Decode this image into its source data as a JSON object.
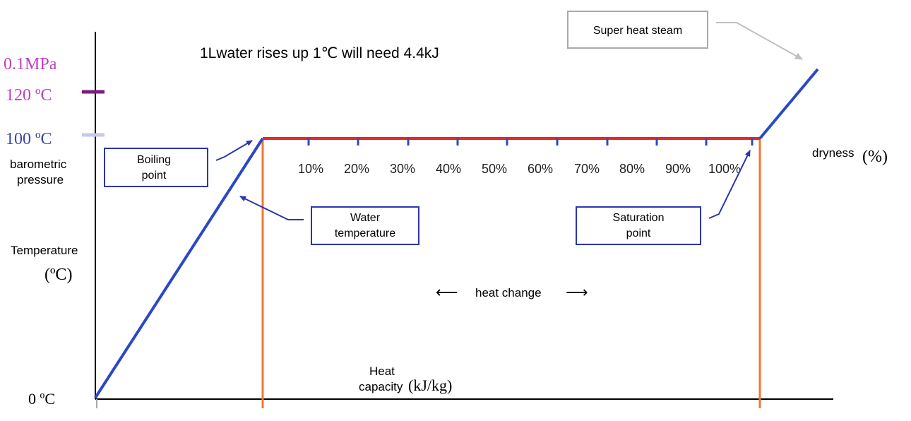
{
  "title": "1Lwater rises up 1℃ will need 4.4kJ",
  "y_axis": {
    "pressure_label": "0.1MPa",
    "tick_120": "120 ºC",
    "tick_100": "100 ºC",
    "tick_0": "0 ºC",
    "barometric_line1": "barometric",
    "barometric_line2": "pressure",
    "temperature_label": "Temperature",
    "temperature_unit": "(ºC)"
  },
  "x_axis": {
    "heat_label": "Heat",
    "capacity_label": "capacity",
    "unit": "(kJ/kg)"
  },
  "dryness": {
    "label": "dryness",
    "unit": "(%)",
    "ticks": [
      "10%",
      "20%",
      "30%",
      "40%",
      "50%",
      "60%",
      "70%",
      "80%",
      "90%",
      "100%"
    ]
  },
  "callouts": {
    "boiling_line1": "Boiling",
    "boiling_line2": "point",
    "water_line1": "Water",
    "water_line2": "temperature",
    "saturation_line1": "Saturation",
    "saturation_line2": "point",
    "superheat": "Super heat steam"
  },
  "heat_change": {
    "left_arrow": "⟵",
    "label": "heat change",
    "right_arrow": "⟶"
  },
  "colors": {
    "heating_line": "#2a48c4",
    "boiling_plateau": "#e02a2a",
    "phase_bounds": "#f07830",
    "callout_border": "#2b35b0",
    "superheat_border": "#aaaaaa",
    "pressure_text": "#c040c0",
    "tick_120": "#7a1f7a",
    "tick_100": "#c8c8ee",
    "tick_100_text": "#3b44a8"
  }
}
